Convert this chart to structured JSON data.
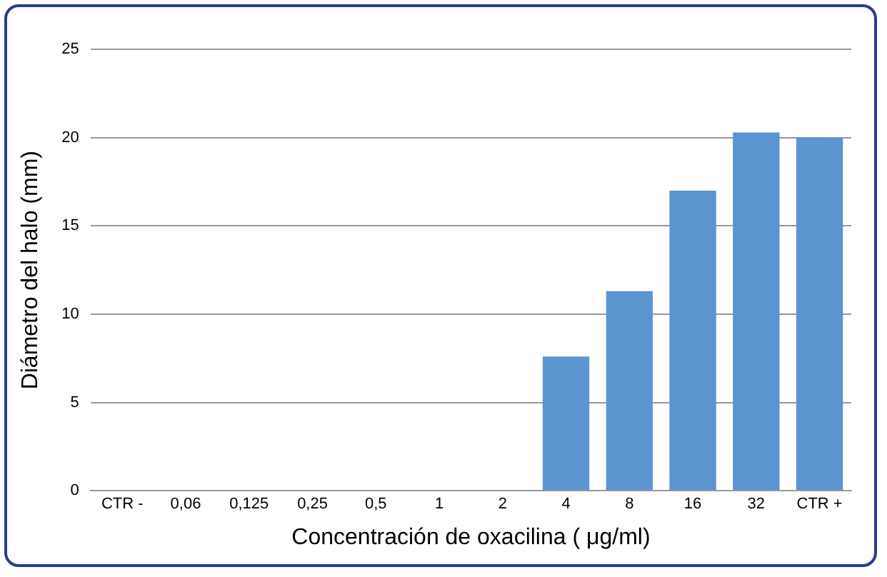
{
  "chart_data": {
    "type": "bar",
    "xlabel": "Concentración de oxacilina ( μg/ml)",
    "ylabel": "Diámetro del halo (mm)",
    "categories": [
      "CTR -",
      "0,06",
      "0,125",
      "0,25",
      "0,5",
      "1",
      "2",
      "4",
      "8",
      "16",
      "32",
      "CTR +"
    ],
    "values": [
      0,
      0,
      0,
      0,
      0,
      0,
      0,
      7.6,
      11.3,
      17,
      20.3,
      20
    ],
    "color": "#5b94cf",
    "ylim": [
      0,
      25
    ],
    "yticks": [
      0,
      5,
      10,
      15,
      20,
      25
    ],
    "grid": "y",
    "legend": false
  }
}
